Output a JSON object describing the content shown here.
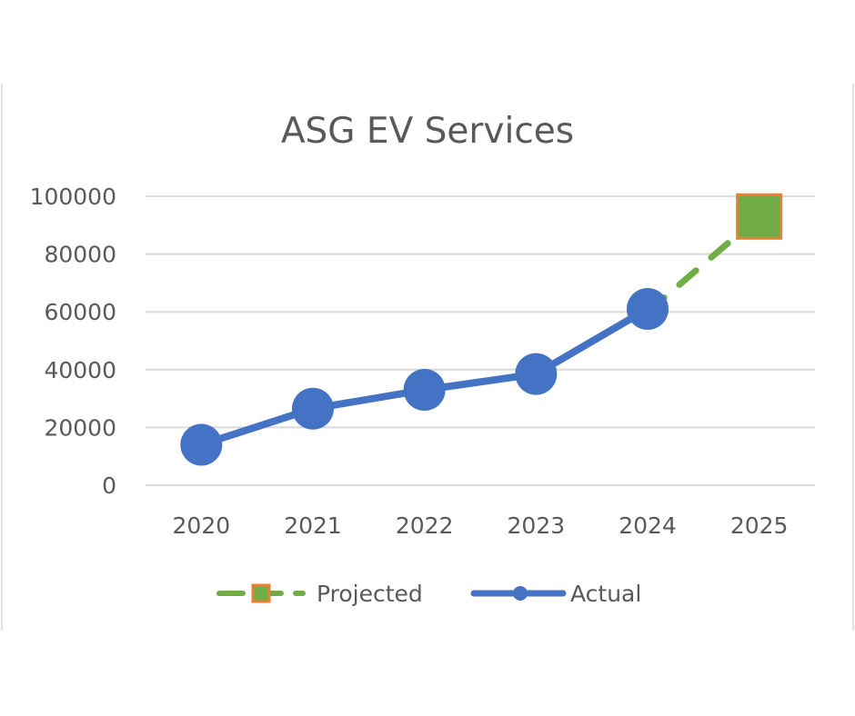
{
  "chart_data": {
    "type": "line",
    "title": "ASG EV Services",
    "xlabel": "",
    "ylabel": "",
    "categories": [
      "2020",
      "2021",
      "2022",
      "2023",
      "2024",
      "2025"
    ],
    "ylim": [
      0,
      100000
    ],
    "y_ticks": [
      0,
      20000,
      40000,
      60000,
      80000,
      100000
    ],
    "grid": true,
    "legend_position": "bottom",
    "series": [
      {
        "name": "Projected",
        "style": "dashed",
        "marker": "square",
        "color": "#70AD47",
        "marker_border": "#ED7D31",
        "points": [
          [
            "2024",
            60000
          ],
          [
            "2025",
            93000
          ]
        ]
      },
      {
        "name": "Actual",
        "style": "solid",
        "marker": "circle",
        "color": "#4472C4",
        "points": [
          [
            "2020",
            14000
          ],
          [
            "2021",
            26500
          ],
          [
            "2022",
            33000
          ],
          [
            "2023",
            38500
          ],
          [
            "2024",
            61000
          ]
        ]
      }
    ]
  }
}
